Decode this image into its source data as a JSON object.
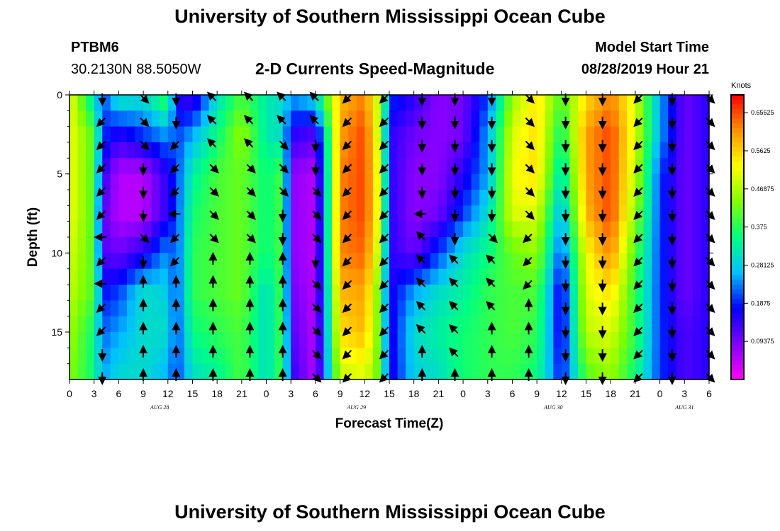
{
  "header": {
    "title": "University of Southern Mississippi Ocean Cube",
    "station": "PTBM6",
    "coords": "30.2130N 88.5050W",
    "subtitle": "2-D Currents Speed-Magnitude",
    "model_start_label": "Model Start Time",
    "model_start_value": "08/28/2019 Hour 21"
  },
  "footer": {
    "title": "University of Southern Mississippi Ocean Cube"
  },
  "chart_data": {
    "type": "heatmap",
    "title": "2-D Currents Speed-Magnitude",
    "xlabel": "Forecast Time(Z)",
    "ylabel": "Depth (ft)",
    "x_ticks": [
      "0",
      "3",
      "6",
      "9",
      "12",
      "15",
      "18",
      "21",
      "0",
      "3",
      "6",
      "9",
      "12",
      "15",
      "18",
      "21",
      "0",
      "3",
      "6",
      "9",
      "12",
      "15",
      "18",
      "21",
      "0",
      "3",
      "6"
    ],
    "x_hours_range": [
      0,
      78
    ],
    "date_labels": [
      {
        "label": "AUG 28",
        "hour": 11
      },
      {
        "label": "AUG 29",
        "hour": 35
      },
      {
        "label": "AUG 30",
        "hour": 59
      },
      {
        "label": "AUG 31",
        "hour": 75
      }
    ],
    "y_ticks": [
      "0",
      "5",
      "10",
      "15"
    ],
    "y_range": [
      0,
      18
    ],
    "y_inverted": true,
    "colorbar": {
      "unit": "Knots",
      "min": 0,
      "max": 0.7,
      "ticks": [
        "0.65625",
        "0.5625",
        "0.46875",
        "0.375",
        "0.28125",
        "0.1875",
        "0.09375"
      ],
      "colors": [
        "#ff00ff",
        "#8000ff",
        "#0000ff",
        "#00c0ff",
        "#00ff80",
        "#80ff00",
        "#ffff00",
        "#ff9000",
        "#ff0000"
      ]
    },
    "columns": [
      {
        "hour": 0,
        "speeds": [
          0.52,
          0.52,
          0.52,
          0.52,
          0.5,
          0.48,
          0.46,
          0.44
        ]
      },
      {
        "hour": 3,
        "speeds": [
          0.3,
          0.4,
          0.4,
          0.4,
          0.4,
          0.4,
          0.35,
          0.35
        ]
      },
      {
        "hour": 4,
        "speeds": [
          0.2,
          0.2,
          0.15,
          0.12,
          0.12,
          0.18,
          0.22,
          0.25
        ]
      },
      {
        "hour": 6,
        "speeds": [
          0.33,
          0.15,
          0.05,
          0.05,
          0.1,
          0.2,
          0.25,
          0.3
        ]
      },
      {
        "hour": 9,
        "speeds": [
          0.3,
          0.2,
          0.05,
          0.05,
          0.15,
          0.3,
          0.3,
          0.3
        ]
      },
      {
        "hour": 12,
        "speeds": [
          0.4,
          0.25,
          0.15,
          0.15,
          0.25,
          0.28,
          0.3,
          0.25
        ]
      },
      {
        "hour": 13,
        "speeds": [
          0.15,
          0.2,
          0.2,
          0.2,
          0.2,
          0.2,
          0.2,
          0.2
        ]
      },
      {
        "hour": 15,
        "speeds": [
          0.12,
          0.25,
          0.33,
          0.36,
          0.38,
          0.38,
          0.35,
          0.3
        ]
      },
      {
        "hour": 18,
        "speeds": [
          0.3,
          0.35,
          0.4,
          0.4,
          0.4,
          0.4,
          0.38,
          0.33
        ]
      },
      {
        "hour": 21,
        "speeds": [
          0.4,
          0.45,
          0.42,
          0.42,
          0.42,
          0.42,
          0.4,
          0.4
        ]
      },
      {
        "hour": 24,
        "speeds": [
          0.32,
          0.32,
          0.35,
          0.35,
          0.35,
          0.3,
          0.3,
          0.3
        ]
      },
      {
        "hour": 26,
        "speeds": [
          0.3,
          0.3,
          0.4,
          0.4,
          0.4,
          0.4,
          0.4,
          0.4
        ]
      },
      {
        "hour": 27,
        "speeds": [
          0.25,
          0.15,
          0.08,
          0.08,
          0.08,
          0.1,
          0.12,
          0.15
        ]
      },
      {
        "hour": 30,
        "speeds": [
          0.3,
          0.12,
          0.05,
          0.05,
          0.05,
          0.05,
          0.05,
          0.05
        ]
      },
      {
        "hour": 33,
        "speeds": [
          0.58,
          0.6,
          0.62,
          0.62,
          0.62,
          0.58,
          0.55,
          0.48
        ]
      },
      {
        "hour": 36,
        "speeds": [
          0.62,
          0.66,
          0.66,
          0.66,
          0.64,
          0.6,
          0.58,
          0.5
        ]
      },
      {
        "hour": 38,
        "speeds": [
          0.45,
          0.45,
          0.48,
          0.48,
          0.45,
          0.4,
          0.4,
          0.4
        ]
      },
      {
        "hour": 39,
        "speeds": [
          0.2,
          0.15,
          0.15,
          0.15,
          0.15,
          0.15,
          0.15,
          0.15
        ]
      },
      {
        "hour": 42,
        "speeds": [
          0.15,
          0.1,
          0.08,
          0.08,
          0.1,
          0.25,
          0.3,
          0.28
        ]
      },
      {
        "hour": 45,
        "speeds": [
          0.08,
          0.08,
          0.08,
          0.1,
          0.2,
          0.3,
          0.33,
          0.3
        ]
      },
      {
        "hour": 48,
        "speeds": [
          0.1,
          0.1,
          0.15,
          0.2,
          0.3,
          0.33,
          0.36,
          0.36
        ]
      },
      {
        "hour": 51,
        "speeds": [
          0.2,
          0.25,
          0.25,
          0.3,
          0.35,
          0.38,
          0.38,
          0.38
        ]
      },
      {
        "hour": 54,
        "speeds": [
          0.45,
          0.5,
          0.52,
          0.5,
          0.42,
          0.4,
          0.4,
          0.38
        ]
      },
      {
        "hour": 57,
        "speeds": [
          0.55,
          0.55,
          0.55,
          0.5,
          0.45,
          0.4,
          0.38,
          0.35
        ]
      },
      {
        "hour": 60,
        "speeds": [
          0.4,
          0.35,
          0.3,
          0.25,
          0.2,
          0.15,
          0.15,
          0.18
        ]
      },
      {
        "hour": 63,
        "speeds": [
          0.55,
          0.6,
          0.6,
          0.58,
          0.52,
          0.5,
          0.48,
          0.4
        ]
      },
      {
        "hour": 66,
        "speeds": [
          0.62,
          0.66,
          0.66,
          0.66,
          0.62,
          0.55,
          0.5,
          0.45
        ]
      },
      {
        "hour": 69,
        "speeds": [
          0.5,
          0.5,
          0.48,
          0.45,
          0.4,
          0.38,
          0.38,
          0.35
        ]
      },
      {
        "hour": 72,
        "speeds": [
          0.25,
          0.25,
          0.2,
          0.2,
          0.2,
          0.2,
          0.2,
          0.2
        ]
      },
      {
        "hour": 75,
        "speeds": [
          0.1,
          0.1,
          0.1,
          0.1,
          0.1,
          0.1,
          0.12,
          0.12
        ]
      },
      {
        "hour": 78,
        "speeds": [
          0.15,
          0.15,
          0.15,
          0.15,
          0.15,
          0.15,
          0.15,
          0.15
        ]
      }
    ],
    "depth_levels": [
      0,
      2.5,
      5,
      7.5,
      10,
      12.5,
      15,
      18
    ],
    "vector_columns": [
      {
        "hour": 4,
        "dirs": [
          "S",
          "SW",
          "SW",
          "SW",
          "SW",
          "SW",
          "W",
          "SW",
          "W",
          "SW",
          "SW",
          "S",
          "S"
        ]
      },
      {
        "hour": 9,
        "dirs": [
          "SE",
          "SE",
          "SE",
          "S",
          "S",
          "S",
          "SE",
          "S",
          "N",
          "N",
          "N",
          "N",
          "N"
        ]
      },
      {
        "hour": 13,
        "dirs": [
          "S",
          "S",
          "SW",
          "SW",
          "SW",
          "W",
          "SW",
          "SW",
          "N",
          "N",
          "N",
          "N",
          "N"
        ]
      },
      {
        "hour": 17.5,
        "dirs": [
          "NW",
          "NW",
          "NW",
          "SE",
          "SE",
          "SE",
          "SE",
          "N",
          "N",
          "N",
          "N",
          "N",
          "N"
        ]
      },
      {
        "hour": 22,
        "dirs": [
          "NW",
          "NW",
          "NW",
          "SE",
          "SE",
          "SE",
          "SE",
          "N",
          "N",
          "N",
          "N",
          "N",
          "N"
        ]
      },
      {
        "hour": 26,
        "dirs": [
          "NW",
          "NW",
          "SE",
          "SE",
          "SE",
          "S",
          "S",
          "N",
          "N",
          "N",
          "N",
          "N",
          "N"
        ]
      },
      {
        "hour": 30,
        "dirs": [
          "NW",
          "NW",
          "S",
          "S",
          "SE",
          "SE",
          "SE",
          "S",
          "SE",
          "SE",
          "SE",
          "SE",
          "SE"
        ]
      },
      {
        "hour": 34,
        "dirs": [
          "SW",
          "SW",
          "SW",
          "SW",
          "SW",
          "SW",
          "SW",
          "SW",
          "SW",
          "SW",
          "SW",
          "SW",
          "SW"
        ]
      },
      {
        "hour": 38.5,
        "dirs": [
          "SW",
          "SW",
          "SW",
          "SW",
          "SW",
          "SW",
          "SW",
          "SW",
          "SW",
          "SW",
          "SW",
          "SW",
          "SW"
        ]
      },
      {
        "hour": 43,
        "dirs": [
          "S",
          "S",
          "S",
          "S",
          "S",
          "W",
          "NW",
          "NW",
          "NW",
          "NW",
          "NW",
          "N",
          "N"
        ]
      },
      {
        "hour": 47,
        "dirs": [
          "S",
          "S",
          "S",
          "S",
          "S",
          "S",
          "S",
          "NW",
          "NW",
          "NW",
          "NW",
          "NW",
          "N"
        ]
      },
      {
        "hour": 51.5,
        "dirs": [
          "S",
          "S",
          "S",
          "S",
          "S",
          "S",
          "SE",
          "NW",
          "NW",
          "NW",
          "N",
          "N",
          "N"
        ]
      },
      {
        "hour": 56,
        "dirs": [
          "SE",
          "SE",
          "SE",
          "SE",
          "SE",
          "SE",
          "SW",
          "SW",
          "SW",
          "N",
          "N",
          "N",
          "N"
        ]
      },
      {
        "hour": 60.5,
        "dirs": [
          "S",
          "S",
          "S",
          "S",
          "S",
          "S",
          "S",
          "S",
          "S",
          "S",
          "S",
          "S",
          "S"
        ]
      },
      {
        "hour": 65,
        "dirs": [
          "S",
          "S",
          "S",
          "S",
          "S",
          "S",
          "S",
          "S",
          "S",
          "S",
          "S",
          "S",
          "S"
        ]
      },
      {
        "hour": 69.5,
        "dirs": [
          "SW",
          "SW",
          "SW",
          "SW",
          "SW",
          "SW",
          "SW",
          "SW",
          "SW",
          "SW",
          "SW",
          "SW",
          "SW"
        ]
      },
      {
        "hour": 73.5,
        "dirs": [
          "S",
          "S",
          "S",
          "S",
          "S",
          "S",
          "S",
          "S",
          "S",
          "S",
          "S",
          "S",
          "S"
        ]
      },
      {
        "hour": 78,
        "dirs": [
          "SE",
          "SE",
          "SE",
          "SE",
          "SE",
          "SE",
          "SE",
          "SE",
          "SE",
          "SE",
          "SE",
          "SE",
          "SE"
        ]
      }
    ]
  }
}
